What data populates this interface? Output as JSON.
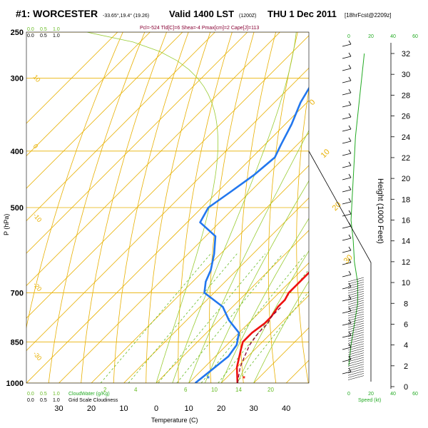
{
  "header": {
    "title": "#1: WORCESTER",
    "coords": "-33.65°,19.4° (19.26)",
    "valid": "Valid 1400 LST",
    "utc": "(1200Z)",
    "date": "THU 1 Dec 2011",
    "forecast": "[18hrFcst@2209z]",
    "parcel_info": "Pcl=-524 Tld[C]=6 Shea=-4 Pmax[cm]=2 Cape[J]=113"
  },
  "colors": {
    "temperature": "#ee1111",
    "dewpoint": "#2277ee",
    "parcel": "#880033",
    "isobar": "#e8b000",
    "isotherm": "#e8b000",
    "dry_adiabat": "#e8b000",
    "mixing_ratio": "#66bb22",
    "moist_adiabat": "#99cc33",
    "speed": "#22aa22"
  },
  "chart_data": {
    "type": "line",
    "title": "#1: WORCESTER",
    "xlabel": "Temperature (C)",
    "ylabel": "P (hPa)",
    "right_ylabel": "Height (1000 Feet)",
    "speed_label": "Speed (kt)",
    "xlim": [
      -40,
      47
    ],
    "ylog": true,
    "pressure_ticks": [
      250,
      300,
      400,
      500,
      700,
      850,
      1000
    ],
    "temperature_ticks": [
      30,
      20,
      10,
      0,
      10,
      20,
      30,
      40
    ],
    "temperature_tick_values": [
      -30,
      -20,
      -10,
      0,
      10,
      20,
      30,
      40
    ],
    "height_ticks": [
      0,
      2,
      4,
      6,
      8,
      10,
      12,
      14,
      16,
      18,
      20,
      22,
      24,
      26,
      28,
      30,
      32
    ],
    "speed_ticks": [
      "0",
      "20",
      "40",
      "60"
    ],
    "cloud_water_label": "CloudWater (g/Kg)",
    "cloud_scale_label": "Grid Scale Cloudiness",
    "cloud_ticks": [
      "0.0",
      "0.5",
      "1.0"
    ],
    "isotherm_labels": [
      "0",
      "10",
      "20",
      "30"
    ],
    "adiabat_labels": [
      "10",
      "0",
      "-10",
      "-20",
      "-30"
    ],
    "mixing_labels": [
      "2",
      "4",
      "6",
      "10",
      "14",
      "20"
    ],
    "series": [
      {
        "name": "Temperature",
        "points": [
          [
            25,
            1000
          ],
          [
            20,
            940
          ],
          [
            16,
            880
          ],
          [
            14,
            850
          ],
          [
            14,
            820
          ],
          [
            15,
            790
          ],
          [
            15,
            770
          ],
          [
            14,
            740
          ],
          [
            14,
            720
          ],
          [
            13,
            700
          ],
          [
            13,
            670
          ],
          [
            13,
            640
          ],
          [
            12,
            600
          ],
          [
            11,
            560
          ],
          [
            10,
            520
          ],
          [
            8,
            490
          ],
          [
            6,
            460
          ],
          [
            4,
            430
          ],
          [
            1,
            400
          ],
          [
            -1,
            370
          ],
          [
            -3,
            340
          ],
          [
            -4,
            320
          ],
          [
            -5,
            300
          ],
          [
            -6,
            280
          ],
          [
            -6,
            260
          ]
        ]
      },
      {
        "name": "Dewpoint",
        "points": [
          [
            12,
            1000
          ],
          [
            13,
            950
          ],
          [
            14,
            900
          ],
          [
            13,
            860
          ],
          [
            10,
            820
          ],
          [
            3,
            780
          ],
          [
            -3,
            740
          ],
          [
            -13,
            700
          ],
          [
            -16,
            670
          ],
          [
            -18,
            640
          ],
          [
            -22,
            600
          ],
          [
            -27,
            560
          ],
          [
            -36,
            530
          ],
          [
            -38,
            500
          ],
          [
            -36,
            470
          ],
          [
            -34,
            440
          ],
          [
            -33,
            410
          ],
          [
            -35,
            390
          ],
          [
            -38,
            360
          ],
          [
            -42,
            330
          ],
          [
            -45,
            300
          ],
          [
            -46,
            280
          ],
          [
            -47,
            255
          ]
        ]
      },
      {
        "name": "Parcel",
        "points": [
          [
            25,
            1000
          ],
          [
            21,
            940
          ],
          [
            19,
            900
          ],
          [
            17,
            860
          ],
          [
            16,
            820
          ],
          [
            16,
            790
          ],
          [
            15,
            770
          ],
          [
            15,
            740
          ]
        ]
      }
    ],
    "wind_speed": [
      [
        0,
        2
      ],
      [
        2,
        4
      ],
      [
        5,
        6
      ],
      [
        8,
        8
      ],
      [
        8,
        10
      ],
      [
        5,
        12
      ],
      [
        4,
        14
      ],
      [
        2,
        16
      ],
      [
        3,
        18
      ],
      [
        4,
        20
      ],
      [
        5,
        22
      ],
      [
        6,
        24
      ],
      [
        8,
        26
      ],
      [
        10,
        28
      ],
      [
        12,
        30
      ],
      [
        14,
        32
      ]
    ],
    "surface_markers": [
      {
        "name": "temperature",
        "value": 27
      },
      {
        "name": "dewpoint",
        "value": 16
      }
    ]
  }
}
